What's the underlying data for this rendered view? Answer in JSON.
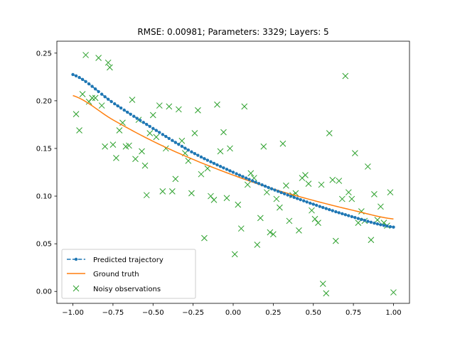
{
  "chart_data": {
    "type": "scatter",
    "title": "RMSE: 0.00981; Parameters: 3329; Layers: 5",
    "xlabel": "",
    "ylabel": "",
    "xlim": [
      -1.1,
      1.1
    ],
    "ylim": [
      -0.0125,
      0.2625
    ],
    "xticks": [
      -1.0,
      -0.75,
      -0.5,
      -0.25,
      0.0,
      0.25,
      0.5,
      0.75,
      1.0
    ],
    "xtick_labels": [
      "−1.00",
      "−0.75",
      "−0.50",
      "−0.25",
      "0.00",
      "0.25",
      "0.50",
      "0.75",
      "1.00"
    ],
    "yticks": [
      0.0,
      0.05,
      0.1,
      0.15,
      0.2,
      0.25
    ],
    "ytick_labels": [
      "0.00",
      "0.05",
      "0.10",
      "0.15",
      "0.20",
      "0.25"
    ],
    "grid": false,
    "legend_position": "lower-left",
    "series": [
      {
        "name": "Predicted trajectory",
        "kind": "dashed-line-with-dot-markers",
        "color": "#1f77b4",
        "curve_points": [
          {
            "x": -1.0,
            "y": 0.2275
          },
          {
            "x": -0.75,
            "y": 0.198
          },
          {
            "x": -0.5,
            "y": 0.171
          },
          {
            "x": -0.25,
            "y": 0.1455
          },
          {
            "x": 0.0,
            "y": 0.125
          },
          {
            "x": 0.25,
            "y": 0.107
          },
          {
            "x": 0.5,
            "y": 0.0915
          },
          {
            "x": 0.75,
            "y": 0.078
          },
          {
            "x": 1.0,
            "y": 0.0675
          }
        ],
        "num_points": 101
      },
      {
        "name": "Ground truth",
        "kind": "line",
        "color": "#ff7f0e",
        "curve_points": [
          {
            "x": -1.0,
            "y": 0.2055
          },
          {
            "x": -0.75,
            "y": 0.18
          },
          {
            "x": -0.5,
            "y": 0.1575
          },
          {
            "x": -0.25,
            "y": 0.1385
          },
          {
            "x": 0.0,
            "y": 0.122
          },
          {
            "x": 0.25,
            "y": 0.1075
          },
          {
            "x": 0.5,
            "y": 0.0955
          },
          {
            "x": 0.75,
            "y": 0.085
          },
          {
            "x": 1.0,
            "y": 0.076
          }
        ]
      },
      {
        "name": "Noisy observations",
        "kind": "x-markers",
        "color": "#2ca02c",
        "points": [
          {
            "x": -0.98,
            "y": 0.186
          },
          {
            "x": -0.96,
            "y": 0.169
          },
          {
            "x": -0.94,
            "y": 0.207
          },
          {
            "x": -0.92,
            "y": 0.248
          },
          {
            "x": -0.9,
            "y": 0.199
          },
          {
            "x": -0.88,
            "y": 0.203
          },
          {
            "x": -0.86,
            "y": 0.203
          },
          {
            "x": -0.84,
            "y": 0.245
          },
          {
            "x": -0.82,
            "y": 0.195
          },
          {
            "x": -0.8,
            "y": 0.152
          },
          {
            "x": -0.78,
            "y": 0.24
          },
          {
            "x": -0.77,
            "y": 0.235
          },
          {
            "x": -0.75,
            "y": 0.154
          },
          {
            "x": -0.73,
            "y": 0.14
          },
          {
            "x": -0.71,
            "y": 0.169
          },
          {
            "x": -0.69,
            "y": 0.177
          },
          {
            "x": -0.67,
            "y": 0.152
          },
          {
            "x": -0.65,
            "y": 0.153
          },
          {
            "x": -0.63,
            "y": 0.201
          },
          {
            "x": -0.61,
            "y": 0.139
          },
          {
            "x": -0.59,
            "y": 0.18
          },
          {
            "x": -0.57,
            "y": 0.147
          },
          {
            "x": -0.55,
            "y": 0.132
          },
          {
            "x": -0.54,
            "y": 0.101
          },
          {
            "x": -0.52,
            "y": 0.166
          },
          {
            "x": -0.5,
            "y": 0.185
          },
          {
            "x": -0.48,
            "y": 0.162
          },
          {
            "x": -0.46,
            "y": 0.195
          },
          {
            "x": -0.44,
            "y": 0.105
          },
          {
            "x": -0.42,
            "y": 0.15
          },
          {
            "x": -0.4,
            "y": 0.194
          },
          {
            "x": -0.38,
            "y": 0.105
          },
          {
            "x": -0.36,
            "y": 0.118
          },
          {
            "x": -0.34,
            "y": 0.191
          },
          {
            "x": -0.32,
            "y": 0.158
          },
          {
            "x": -0.3,
            "y": 0.145
          },
          {
            "x": -0.28,
            "y": 0.137
          },
          {
            "x": -0.26,
            "y": 0.103
          },
          {
            "x": -0.24,
            "y": 0.166
          },
          {
            "x": -0.22,
            "y": 0.19
          },
          {
            "x": -0.2,
            "y": 0.123
          },
          {
            "x": -0.18,
            "y": 0.056
          },
          {
            "x": -0.16,
            "y": 0.129
          },
          {
            "x": -0.14,
            "y": 0.1
          },
          {
            "x": -0.12,
            "y": 0.096
          },
          {
            "x": -0.1,
            "y": 0.196
          },
          {
            "x": -0.08,
            "y": 0.147
          },
          {
            "x": -0.06,
            "y": 0.167
          },
          {
            "x": -0.04,
            "y": 0.098
          },
          {
            "x": -0.02,
            "y": 0.15
          },
          {
            "x": 0.01,
            "y": 0.039
          },
          {
            "x": 0.03,
            "y": 0.091
          },
          {
            "x": 0.05,
            "y": 0.066
          },
          {
            "x": 0.07,
            "y": 0.194
          },
          {
            "x": 0.09,
            "y": 0.112
          },
          {
            "x": 0.11,
            "y": 0.124
          },
          {
            "x": 0.13,
            "y": 0.119
          },
          {
            "x": 0.15,
            "y": 0.049
          },
          {
            "x": 0.17,
            "y": 0.077
          },
          {
            "x": 0.19,
            "y": 0.152
          },
          {
            "x": 0.21,
            "y": 0.104
          },
          {
            "x": 0.23,
            "y": 0.062
          },
          {
            "x": 0.25,
            "y": 0.06
          },
          {
            "x": 0.27,
            "y": 0.097
          },
          {
            "x": 0.29,
            "y": 0.088
          },
          {
            "x": 0.31,
            "y": 0.155
          },
          {
            "x": 0.33,
            "y": 0.111
          },
          {
            "x": 0.35,
            "y": 0.074
          },
          {
            "x": 0.37,
            "y": 0.101
          },
          {
            "x": 0.39,
            "y": 0.103
          },
          {
            "x": 0.41,
            "y": 0.064
          },
          {
            "x": 0.43,
            "y": 0.119
          },
          {
            "x": 0.45,
            "y": 0.122
          },
          {
            "x": 0.47,
            "y": 0.113
          },
          {
            "x": 0.49,
            "y": 0.085
          },
          {
            "x": 0.51,
            "y": 0.076
          },
          {
            "x": 0.53,
            "y": 0.072
          },
          {
            "x": 0.55,
            "y": 0.112
          },
          {
            "x": 0.56,
            "y": 0.008
          },
          {
            "x": 0.58,
            "y": -0.002
          },
          {
            "x": 0.6,
            "y": 0.166
          },
          {
            "x": 0.62,
            "y": 0.117
          },
          {
            "x": 0.64,
            "y": 0.053
          },
          {
            "x": 0.66,
            "y": 0.116
          },
          {
            "x": 0.68,
            "y": 0.097
          },
          {
            "x": 0.7,
            "y": 0.226
          },
          {
            "x": 0.72,
            "y": 0.104
          },
          {
            "x": 0.74,
            "y": 0.097
          },
          {
            "x": 0.76,
            "y": 0.145
          },
          {
            "x": 0.78,
            "y": 0.072
          },
          {
            "x": 0.8,
            "y": 0.084
          },
          {
            "x": 0.82,
            "y": 0.074
          },
          {
            "x": 0.84,
            "y": 0.131
          },
          {
            "x": 0.86,
            "y": 0.054
          },
          {
            "x": 0.88,
            "y": 0.102
          },
          {
            "x": 0.9,
            "y": 0.075
          },
          {
            "x": 0.92,
            "y": 0.089
          },
          {
            "x": 0.94,
            "y": 0.072
          },
          {
            "x": 0.96,
            "y": 0.069
          },
          {
            "x": 0.98,
            "y": 0.104
          },
          {
            "x": 1.0,
            "y": -0.001
          }
        ]
      }
    ]
  }
}
